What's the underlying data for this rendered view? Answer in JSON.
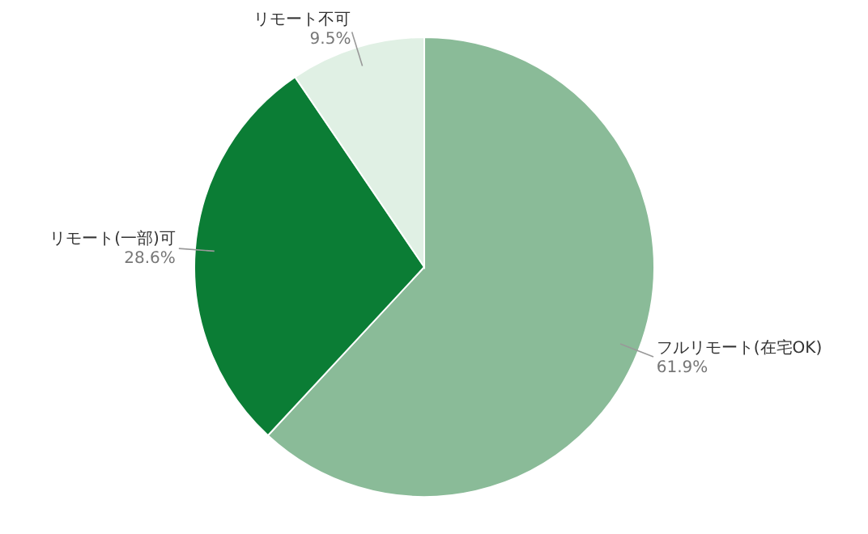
{
  "chart_data": {
    "type": "pie",
    "categories": [
      "フルリモート(在宅OK)",
      "リモート(一部)可",
      "リモート不可"
    ],
    "values": [
      61.9,
      28.6,
      9.5
    ],
    "colors": [
      "#8abb98",
      "#0b7d35",
      "#e0f0e4"
    ],
    "value_labels": [
      "61.9%",
      "28.6%",
      "9.5%"
    ]
  }
}
